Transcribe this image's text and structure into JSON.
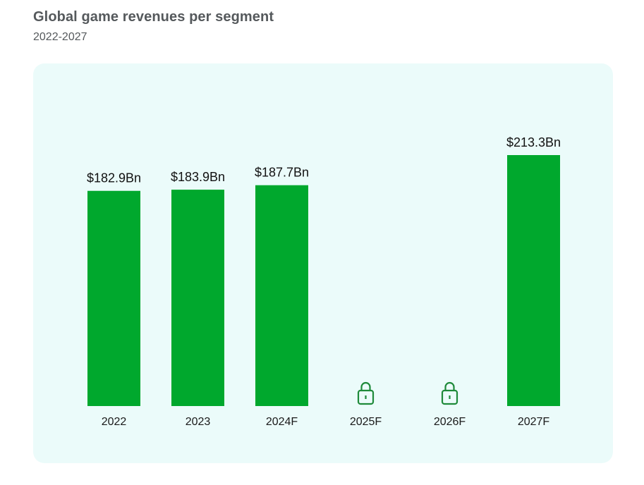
{
  "header": {
    "title": "Global game revenues per segment",
    "subtitle": "2022-2027"
  },
  "colors": {
    "bar": "#00a82d",
    "lock": "#1e8a3a",
    "panel_bg": "#ebfbfa",
    "title": "#55595c"
  },
  "chart_data": {
    "type": "bar",
    "title": "Global game revenues per segment",
    "subtitle": "2022-2027",
    "xlabel": "",
    "ylabel": "",
    "unit": "Bn USD",
    "categories": [
      "2022",
      "2023",
      "2024F",
      "2025F",
      "2026F",
      "2027F"
    ],
    "values": [
      182.9,
      183.9,
      187.7,
      null,
      null,
      213.3
    ],
    "value_labels": [
      "$182.9Bn",
      "$183.9Bn",
      "$187.7Bn",
      "",
      "",
      "$213.3Bn"
    ],
    "locked": [
      false,
      false,
      false,
      true,
      true,
      false
    ],
    "locked_icon": "lock-icon",
    "ylim": [
      0,
      213.3
    ],
    "grid": false,
    "legend": "none"
  }
}
